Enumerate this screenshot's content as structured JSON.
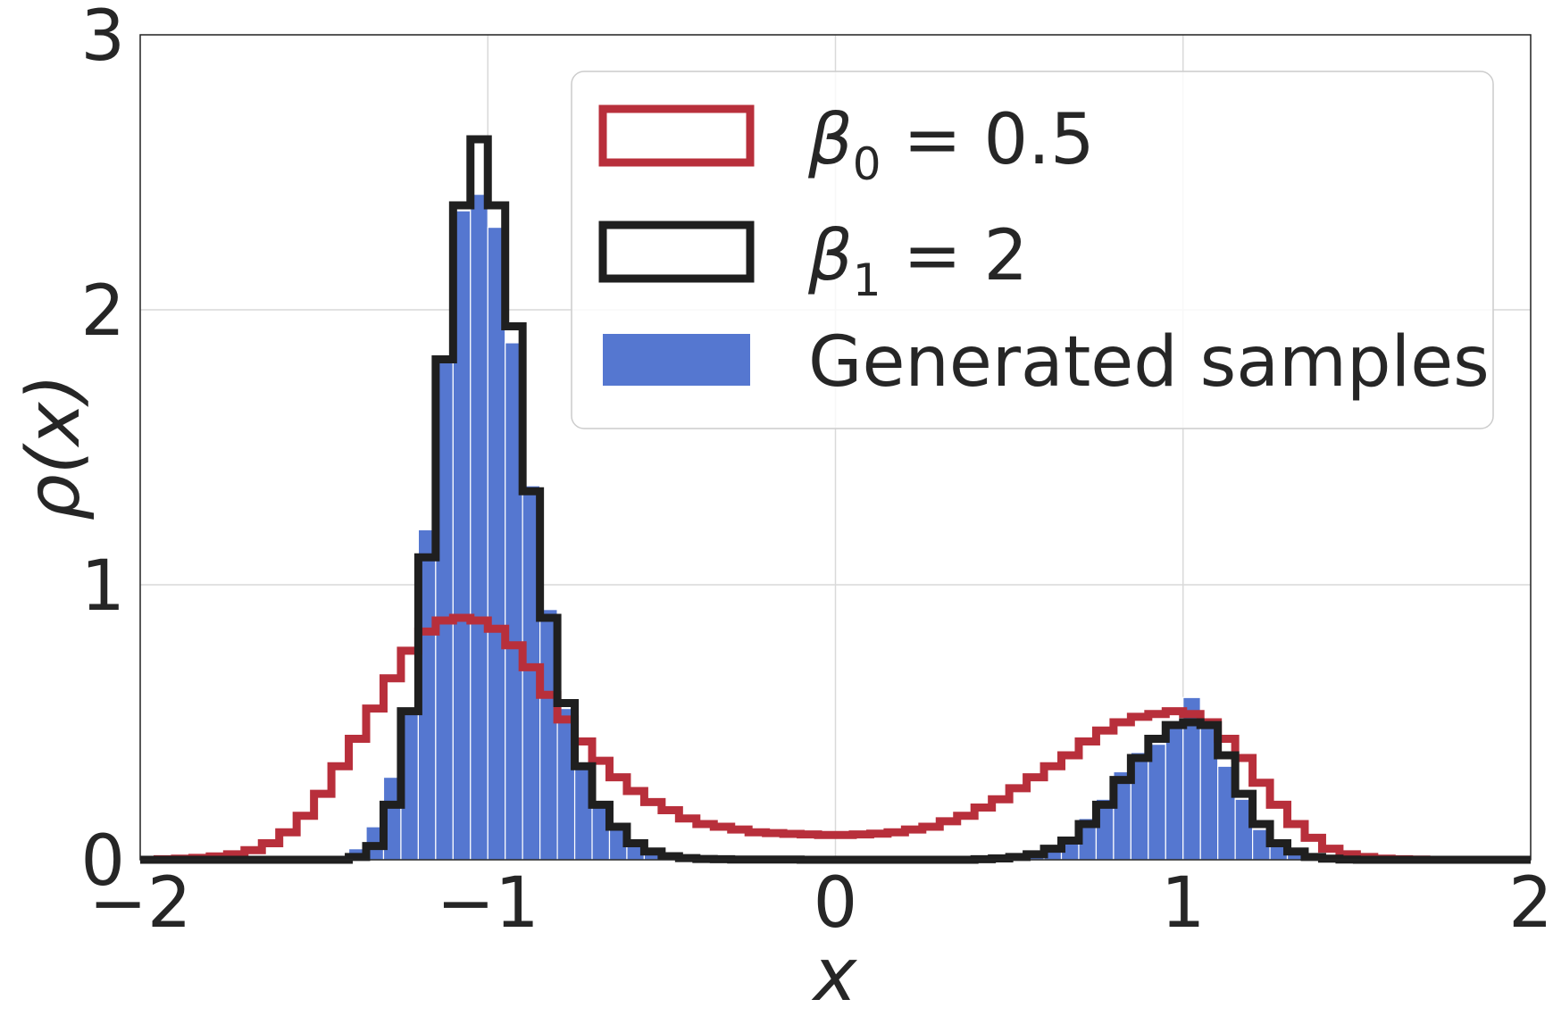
{
  "chart_data": {
    "type": "histogram",
    "xlabel": "x",
    "ylabel": "ρ(x)",
    "xlim": [
      -2,
      2
    ],
    "ylim": [
      0,
      3
    ],
    "x_ticks": [
      {
        "value": -2,
        "label": "−2"
      },
      {
        "value": -1,
        "label": "−1"
      },
      {
        "value": 0,
        "label": "0"
      },
      {
        "value": 1,
        "label": "1"
      },
      {
        "value": 2,
        "label": "2"
      }
    ],
    "y_ticks": [
      {
        "value": 0,
        "label": "0"
      },
      {
        "value": 1,
        "label": "1"
      },
      {
        "value": 2,
        "label": "2"
      },
      {
        "value": 3,
        "label": "3"
      }
    ],
    "grid": true,
    "legend_position": "top-right",
    "bin_edges": [
      -2.0,
      -1.95,
      -1.9,
      -1.85,
      -1.8,
      -1.75,
      -1.7,
      -1.65,
      -1.6,
      -1.55,
      -1.5,
      -1.45,
      -1.4,
      -1.35,
      -1.3,
      -1.25,
      -1.2,
      -1.15,
      -1.1,
      -1.05,
      -1.0,
      -0.95,
      -0.9,
      -0.85,
      -0.8,
      -0.75,
      -0.7,
      -0.65,
      -0.6,
      -0.55,
      -0.5,
      -0.45,
      -0.4,
      -0.35,
      -0.3,
      -0.25,
      -0.2,
      -0.15,
      -0.1,
      -0.05,
      0.0,
      0.05,
      0.1,
      0.15,
      0.2,
      0.25,
      0.3,
      0.35,
      0.4,
      0.45,
      0.5,
      0.55,
      0.6,
      0.65,
      0.7,
      0.75,
      0.8,
      0.85,
      0.9,
      0.95,
      1.0,
      1.05,
      1.1,
      1.15,
      1.2,
      1.25,
      1.3,
      1.35,
      1.4,
      1.45,
      1.5,
      1.55,
      1.6,
      1.65,
      1.7,
      1.75,
      1.8,
      1.85,
      1.9,
      1.95,
      2.0
    ],
    "series": [
      {
        "name": "β₀ = 0.5",
        "legend_base": "β",
        "legend_sub": "0",
        "legend_rest": " = 0.5",
        "style": "step",
        "color": "#b82f3b",
        "values": [
          0.0,
          0.002,
          0.004,
          0.007,
          0.012,
          0.02,
          0.035,
          0.06,
          0.1,
          0.16,
          0.24,
          0.34,
          0.44,
          0.55,
          0.66,
          0.76,
          0.83,
          0.87,
          0.88,
          0.87,
          0.84,
          0.78,
          0.7,
          0.6,
          0.51,
          0.43,
          0.36,
          0.3,
          0.25,
          0.21,
          0.18,
          0.15,
          0.13,
          0.12,
          0.11,
          0.1,
          0.097,
          0.094,
          0.092,
          0.09,
          0.09,
          0.092,
          0.095,
          0.1,
          0.11,
          0.12,
          0.14,
          0.16,
          0.19,
          0.22,
          0.26,
          0.3,
          0.34,
          0.38,
          0.43,
          0.47,
          0.5,
          0.52,
          0.53,
          0.54,
          0.53,
          0.5,
          0.44,
          0.37,
          0.28,
          0.2,
          0.13,
          0.08,
          0.04,
          0.02,
          0.01,
          0.004,
          0.002,
          0.001,
          0.0,
          0.0,
          0.0,
          0.0,
          0.0,
          0.0
        ]
      },
      {
        "name": "β₁ = 2",
        "legend_base": "β",
        "legend_sub": "1",
        "legend_rest": " = 2",
        "style": "step",
        "color": "#1f1f1f",
        "values": [
          0.0,
          0.0,
          0.0,
          0.0,
          0.0,
          0.0,
          0.0,
          0.0,
          0.0,
          0.0,
          0.0,
          0.0,
          0.01,
          0.05,
          0.2,
          0.54,
          1.1,
          1.82,
          2.38,
          2.62,
          2.38,
          1.94,
          1.34,
          0.88,
          0.57,
          0.34,
          0.2,
          0.12,
          0.06,
          0.03,
          0.013,
          0.006,
          0.003,
          0.002,
          0.001,
          0.001,
          0.001,
          0.001,
          0.0,
          0.0,
          0.0,
          0.0,
          0.0,
          0.0,
          0.0,
          0.0,
          0.0,
          0.0,
          0.002,
          0.005,
          0.01,
          0.02,
          0.04,
          0.07,
          0.13,
          0.2,
          0.29,
          0.37,
          0.44,
          0.49,
          0.5,
          0.49,
          0.38,
          0.24,
          0.13,
          0.06,
          0.03,
          0.01,
          0.004,
          0.001,
          0.0,
          0.0,
          0.0,
          0.0,
          0.0,
          0.0,
          0.0,
          0.0,
          0.0,
          0.0
        ]
      },
      {
        "name": "Generated samples",
        "style": "bar",
        "color": "#5577d0",
        "values": [
          0.0,
          0.0,
          0.0,
          0.0,
          0.0,
          0.0,
          0.0,
          0.0,
          0.0,
          0.0,
          0.0,
          0.0,
          0.04,
          0.12,
          0.3,
          0.55,
          1.2,
          1.83,
          2.36,
          2.42,
          2.3,
          1.88,
          1.36,
          0.91,
          0.55,
          0.33,
          0.2,
          0.12,
          0.06,
          0.03,
          0.01,
          0.005,
          0.002,
          0.001,
          0.0,
          0.0,
          0.0,
          0.0,
          0.0,
          0.0,
          0.0,
          0.0,
          0.0,
          0.0,
          0.0,
          0.0,
          0.0,
          0.0,
          0.002,
          0.005,
          0.01,
          0.02,
          0.04,
          0.08,
          0.15,
          0.22,
          0.32,
          0.39,
          0.42,
          0.5,
          0.59,
          0.49,
          0.34,
          0.22,
          0.11,
          0.05,
          0.02,
          0.008,
          0.003,
          0.001,
          0.0,
          0.0,
          0.0,
          0.0,
          0.0,
          0.0,
          0.0,
          0.0,
          0.0,
          0.0
        ]
      }
    ]
  }
}
